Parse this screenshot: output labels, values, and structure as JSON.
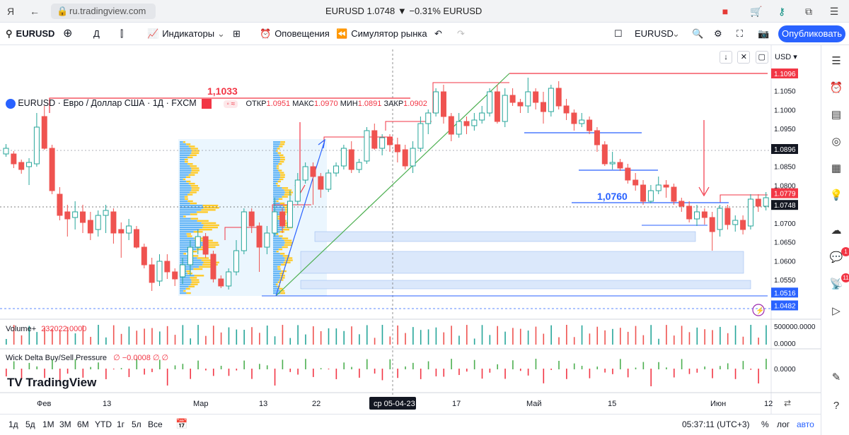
{
  "browser": {
    "url": "ru.tradingview.com",
    "page_title": "EURUSD 1.0748 ▼ −0.31% EURUSD",
    "browser_logo": "Я"
  },
  "toolbar": {
    "symbol": "EURUSD",
    "interval": "Д",
    "indicators": "Индикаторы",
    "alerts": "Оповещения",
    "replay": "Симулятор рынка",
    "symbol_right": "EURUSD",
    "publish": "Опубликовать"
  },
  "legend": {
    "title": "EURUSD · Евро / Доллар США · 1Д · FXCM",
    "open_label": "ОТКР",
    "open": "1.0951",
    "high_label": "МАКС",
    "high": "1.0970",
    "low_label": "МИН",
    "low": "1.0891",
    "close_label": "ЗАКР",
    "close": "1.0902"
  },
  "currency": "USD",
  "price_axis": {
    "ticks": [
      "1.1050",
      "1.1000",
      "1.0950",
      "1.0850",
      "1.0800",
      "1.0700",
      "1.0650",
      "1.0600",
      "1.0550"
    ],
    "tags": [
      {
        "label": "1.1096",
        "color": "#f23645"
      },
      {
        "label": "1.0896",
        "color": "#131722"
      },
      {
        "label": "1.0779",
        "color": "#f23645"
      },
      {
        "label": "1.0748",
        "color": "#131722"
      },
      {
        "label": "1.0516",
        "color": "#2962ff"
      },
      {
        "label": "1.0482",
        "color": "#2962ff"
      }
    ]
  },
  "annotations": {
    "level_1": "1,1033",
    "level_2": "1,0760"
  },
  "volume": {
    "label": "Volume+",
    "value": "232022.0000",
    "axis_tick": "500000.0000",
    "axis_zero": "0.0000"
  },
  "wick_delta": {
    "label": "Wick Delta Buy/Sell Pressure",
    "params": "∅ −0.0008 ∅ ∅",
    "axis_zero": "0.0000"
  },
  "watermark": "TradingView",
  "time_axis": {
    "labels": [
      "Фев",
      "13",
      "Мар",
      "13",
      "22",
      "17",
      "Май",
      "15",
      "Июн",
      "12"
    ],
    "crosshair_label": "ср 05-04-23"
  },
  "bottombar": {
    "timeframes": [
      "1д",
      "5д",
      "1М",
      "3М",
      "6М",
      "YTD",
      "1г",
      "5л",
      "Все"
    ],
    "clock": "05:37:11 (UTC+3)",
    "percent": "%",
    "log": "лог",
    "auto": "авто"
  },
  "right_badges": {
    "chat": "1",
    "ideas": "11"
  },
  "colors": {
    "up": "#26a69a",
    "down": "#ef5350",
    "accent": "#2962ff",
    "red_line": "#f23645",
    "green_line": "#4caf50"
  }
}
